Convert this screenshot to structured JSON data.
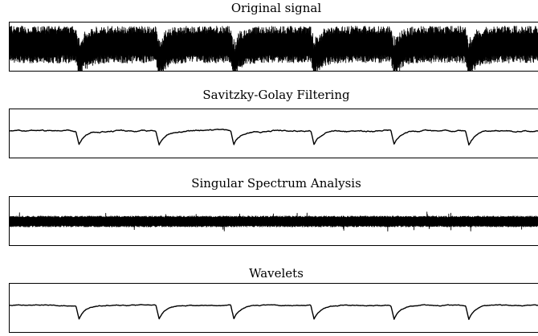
{
  "figure": {
    "panels": [
      {
        "title": "Original signal"
      },
      {
        "title": "Savitzky-Golay Filtering"
      },
      {
        "title": "Singular Spectrum Analysis"
      },
      {
        "title": "Wavelets"
      }
    ]
  },
  "chart_data": [
    {
      "type": "line",
      "title": "Original signal",
      "description_kind": "raw",
      "xlim": [
        0,
        1
      ],
      "ylim": [
        -1,
        1
      ],
      "events_x": [
        0.13,
        0.28,
        0.42,
        0.57,
        0.72,
        0.86
      ],
      "baseline_y": 0.1,
      "oscillation_amplitude": 0.75,
      "event_depth": 0.95,
      "grid": false
    },
    {
      "type": "line",
      "title": "Savitzky-Golay Filtering",
      "description_kind": "smooth",
      "xlim": [
        0,
        1
      ],
      "ylim": [
        -1,
        1
      ],
      "events_x": [
        0.13,
        0.28,
        0.42,
        0.57,
        0.72,
        0.86
      ],
      "baseline_y": 0.12,
      "event_depth": 0.55,
      "noise_amplitude": 0.03,
      "grid": false
    },
    {
      "type": "line",
      "title": "Singular Spectrum Analysis",
      "description_kind": "band",
      "xlim": [
        0,
        1
      ],
      "ylim": [
        -1,
        1
      ],
      "baseline_y": 0.0,
      "oscillation_amplitude": 0.22,
      "grid": false
    },
    {
      "type": "line",
      "title": "Wavelets",
      "description_kind": "smooth",
      "xlim": [
        0,
        1
      ],
      "ylim": [
        -1,
        1
      ],
      "events_x": [
        0.13,
        0.28,
        0.42,
        0.57,
        0.72,
        0.86
      ],
      "baseline_y": 0.12,
      "event_depth": 0.55,
      "noise_amplitude": 0.02,
      "grid": false
    }
  ]
}
